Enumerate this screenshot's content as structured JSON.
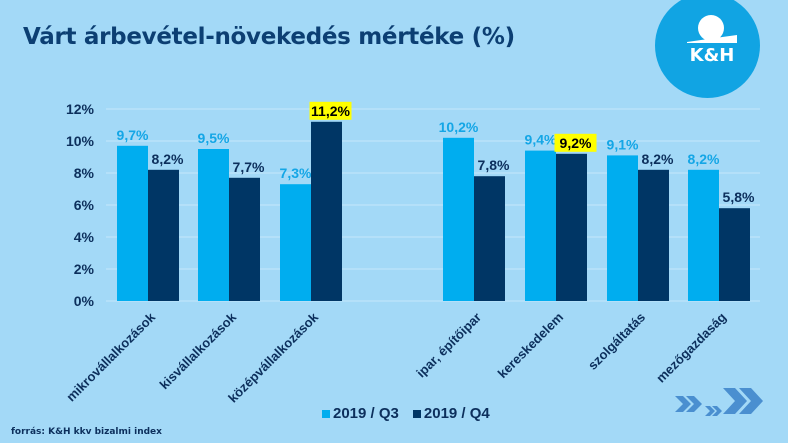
{
  "slide": {
    "title": "Várt árbevétel-növekedés mértéke (%)",
    "source": "forrás: K&H kkv bizalmi index",
    "logo_text": "K&H",
    "nav_icon": "double-chevron-right-icon"
  },
  "colors": {
    "background": "#a3d9f7",
    "series_q3": "#00adef",
    "series_q4": "#003665",
    "title": "#0c3f73",
    "highlight": "#ffff00",
    "logo": "#11a4e3",
    "gridline": "#c6e8fb",
    "chevron": "#4a8fd0"
  },
  "chart_data": {
    "type": "bar",
    "title": "Várt árbevétel-növekedés mértéke (%)",
    "xlabel": "",
    "ylabel": "",
    "ylim": [
      0,
      12
    ],
    "yticks": [
      "0%",
      "2%",
      "4%",
      "6%",
      "8%",
      "10%",
      "12%"
    ],
    "ytick_values": [
      0,
      2,
      4,
      6,
      8,
      10,
      12
    ],
    "grid": true,
    "legend_position": "bottom",
    "category_groups": [
      [
        "mikrovállalkozások",
        "kisvállalkozások",
        "középvállalkozások"
      ],
      [
        "ipar, építőipar",
        "kereskedelem",
        "szolgáltatás",
        "mezőgazdaság"
      ]
    ],
    "categories": [
      "mikrovállalkozások",
      "kisvállalkozások",
      "középvállalkozások",
      "ipar, építőipar",
      "kereskedelem",
      "szolgáltatás",
      "mezőgazdaság"
    ],
    "series": [
      {
        "name": "2019 / Q3",
        "values": [
          9.7,
          9.5,
          7.3,
          10.2,
          9.4,
          9.1,
          8.2
        ],
        "labels": [
          "9,7%",
          "9,5%",
          "7,3%",
          "10,2%",
          "9,4%",
          "9,1%",
          "8,2%"
        ],
        "highlighted": [
          false,
          false,
          false,
          false,
          false,
          false,
          false
        ]
      },
      {
        "name": "2019 / Q4",
        "values": [
          8.2,
          7.7,
          11.2,
          7.8,
          9.2,
          8.2,
          5.8
        ],
        "labels": [
          "8,2%",
          "7,7%",
          "11,2%",
          "7,8%",
          "9,2%",
          "8,2%",
          "5,8%"
        ],
        "highlighted": [
          false,
          false,
          true,
          false,
          true,
          false,
          false
        ]
      }
    ]
  }
}
